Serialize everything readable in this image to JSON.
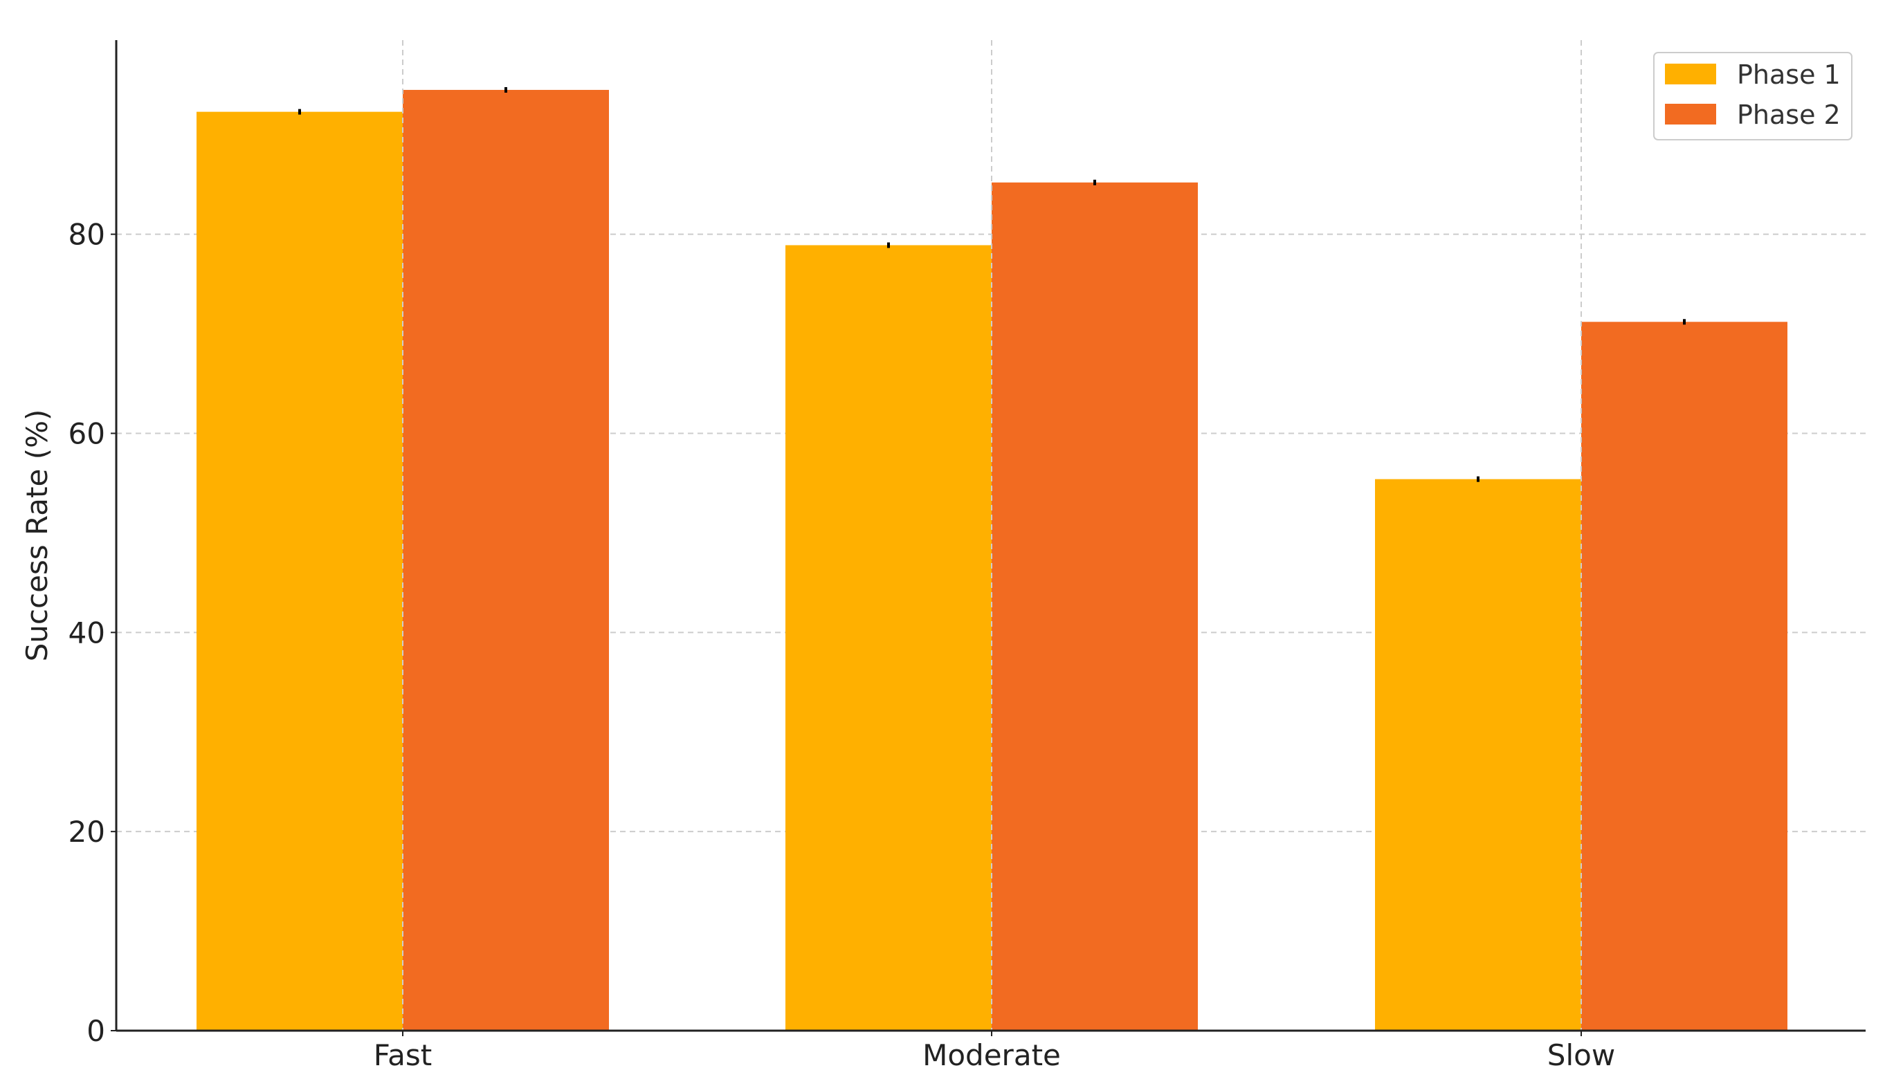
{
  "chart_data": {
    "type": "bar",
    "title": "",
    "xlabel": "",
    "ylabel": "Success Rate (%)",
    "categories": [
      "Fast",
      "Moderate",
      "Slow"
    ],
    "series": [
      {
        "name": "Phase 1",
        "values": [
          92.3,
          78.9,
          55.4
        ],
        "color": "#FFB000"
      },
      {
        "name": "Phase 2",
        "values": [
          94.5,
          85.2,
          71.2
        ],
        "color": "#F26B21"
      }
    ],
    "ylim": [
      0,
      99.5
    ],
    "yticks": [
      "0",
      "20",
      "40",
      "60",
      "80"
    ],
    "grid": true,
    "error_bars": true,
    "legend_position": "top-right"
  }
}
